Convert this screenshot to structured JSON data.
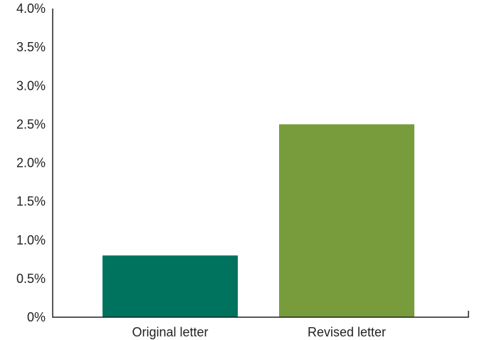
{
  "chart_data": {
    "type": "bar",
    "title": "",
    "xlabel": "",
    "ylabel": "",
    "categories": [
      "Original letter",
      "Revised letter"
    ],
    "values": [
      0.8,
      2.5
    ],
    "colors": [
      "#00735f",
      "#789c3c"
    ],
    "ylim": [
      0,
      4.0
    ],
    "yticks": [
      0,
      0.5,
      1.0,
      1.5,
      2.0,
      2.5,
      3.0,
      3.5,
      4.0
    ],
    "ytick_labels": [
      "0%",
      "0.5%",
      "1.0%",
      "1.5%",
      "2.0%",
      "2.5%",
      "3.0%",
      "3.5%",
      "4.0%"
    ],
    "grid": false,
    "legend": "none",
    "axis_color": "#231f20"
  }
}
